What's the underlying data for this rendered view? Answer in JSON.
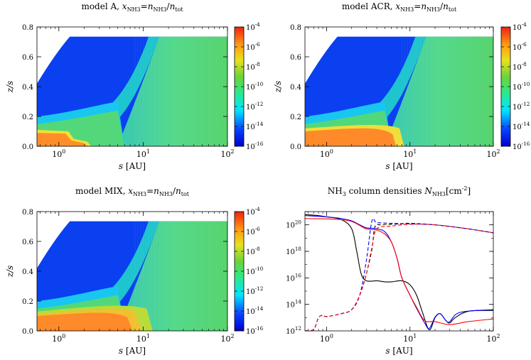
{
  "chart_data": [
    {
      "type": "heatmap",
      "title": "model A, x_NH3 = n_NH3/n_tot",
      "title_html": [
        "model A, ",
        "x",
        "NH3",
        "=",
        "n",
        "NH3",
        "/",
        "n",
        "tot"
      ],
      "xlabel": "s [AU]",
      "ylabel": "z/s",
      "xscale": "log",
      "xlim": [
        0.55,
        100
      ],
      "ylim": [
        0,
        0.8
      ],
      "x_ticks": [
        "10^0",
        "10^1",
        "10^2"
      ],
      "y_ticks": [
        "0.0",
        "0.2",
        "0.4",
        "0.6",
        "0.8"
      ],
      "colorbar": {
        "scale": "log",
        "range": [
          1e-16,
          0.0001
        ],
        "ticks": [
          "10^-4",
          "10^-6",
          "10^-8",
          "10^-10",
          "10^-12",
          "10^-14",
          "10^-16"
        ]
      },
      "notes_shown": "NH3 abundance rises from ~1e-16 (upper disk, blue) to ~1e-5 (midplane, red) near s<1.5 AU; ~1e-11 (green) in outer disk"
    },
    {
      "type": "heatmap",
      "title": "model ACR, x_NH3 = n_NH3/n_tot",
      "title_html": [
        "model ACR, ",
        "x",
        "NH3",
        "=",
        "n",
        "NH3",
        "/",
        "n",
        "tot"
      ],
      "xlabel": "s [AU]",
      "ylabel": "z/s",
      "xscale": "log",
      "xlim": [
        0.55,
        100
      ],
      "ylim": [
        0,
        0.8
      ],
      "x_ticks": [
        "10^0",
        "10^1",
        "10^2"
      ],
      "y_ticks": [
        "0.0",
        "0.2",
        "0.4",
        "0.6",
        "0.8"
      ],
      "colorbar": {
        "scale": "log",
        "range": [
          1e-16,
          0.0001
        ],
        "ticks": [
          "10^-4",
          "10^-6",
          "10^-8",
          "10^-10",
          "10^-12",
          "10^-14",
          "10^-16"
        ]
      }
    },
    {
      "type": "heatmap",
      "title": "model MIX, x_NH3 = n_NH3/n_tot",
      "title_html": [
        "model MIX, ",
        "x",
        "NH3",
        "=",
        "n",
        "NH3",
        "/",
        "n",
        "tot"
      ],
      "xlabel": "s [AU]",
      "ylabel": "z/s",
      "xscale": "log",
      "xlim": [
        0.55,
        100
      ],
      "ylim": [
        0,
        0.8
      ],
      "x_ticks": [
        "10^0",
        "10^1",
        "10^2"
      ],
      "y_ticks": [
        "0.0",
        "0.2",
        "0.4",
        "0.6",
        "0.8"
      ],
      "colorbar": {
        "scale": "log",
        "range": [
          1e-16,
          0.0001
        ],
        "ticks": [
          "10^-4",
          "10^-6",
          "10^-8",
          "10^-10",
          "10^-12",
          "10^-14",
          "10^-16"
        ]
      }
    },
    {
      "type": "line",
      "title": "NH3 column densities N_NH3 [cm^-2]",
      "xlabel": "s [AU]",
      "ylabel": "",
      "xscale": "log",
      "yscale": "log",
      "xlim": [
        0.55,
        100
      ],
      "ylim": [
        1000000000000.0,
        1e+21
      ],
      "x_ticks": [
        "10^0",
        "10^1",
        "10^2"
      ],
      "y_ticks": [
        "10^12",
        "10^14",
        "10^16",
        "10^18",
        "10^20"
      ],
      "series": [
        {
          "color": "#000000",
          "dash": "solid",
          "points": [
            [
              0.55,
              6e+20
            ],
            [
              0.8,
              5e+20
            ],
            [
              1.0,
              4e+20
            ],
            [
              1.5,
              2.5e+20
            ],
            [
              2.0,
              5e+19
            ],
            [
              2.3,
              1e+18
            ],
            [
              2.6,
              2e+16
            ],
            [
              3.0,
              6000000000000000.0
            ],
            [
              4.0,
              6000000000000000.0
            ],
            [
              5.0,
              5000000000000000.0
            ],
            [
              6.0,
              5000000000000000.0
            ],
            [
              8.0,
              6000000000000000.0
            ],
            [
              10,
              3000000000000000.0
            ],
            [
              12,
              500000000000000.0
            ],
            [
              14,
              30000000000000.0
            ],
            [
              17,
              1200000000000.0
            ],
            [
              20,
              10000000000000.0
            ],
            [
              23,
              20000000000000.0
            ],
            [
              27,
              6000000000000.0
            ],
            [
              30,
              4000000000000.0
            ],
            [
              35,
              10000000000000.0
            ],
            [
              50,
              30000000000000.0
            ],
            [
              100,
              35000000000000.0
            ]
          ]
        },
        {
          "color": "#000000",
          "dash": "dashed",
          "points": [
            [
              0.55,
              1000000000000.0
            ],
            [
              0.7,
              1300000000000.0
            ],
            [
              0.8,
              10000000000000.0
            ],
            [
              0.9,
              15000000000000.0
            ],
            [
              1.0,
              12000000000000.0
            ],
            [
              1.5,
              20000000000000.0
            ],
            [
              2.0,
              40000000000000.0
            ],
            [
              2.5,
              500000000000000.0
            ],
            [
              3.0,
              2e+16
            ],
            [
              3.5,
              1.5e+18
            ],
            [
              3.8,
              7e+19
            ],
            [
              4.5,
              1e+20
            ],
            [
              6.0,
              1.1e+20
            ],
            [
              8.0,
              1.2e+20
            ],
            [
              10,
              1.3e+20
            ],
            [
              20,
              1e+20
            ],
            [
              50,
              5e+19
            ],
            [
              100,
              2.5e+19
            ]
          ]
        },
        {
          "color": "#0000ff",
          "dash": "solid",
          "points": [
            [
              0.55,
              5e+20
            ],
            [
              1.0,
              4e+20
            ],
            [
              1.5,
              3e+20
            ],
            [
              2.0,
              2e+20
            ],
            [
              2.5,
              1e+20
            ],
            [
              3.0,
              6e+19
            ],
            [
              4.0,
              5e+19
            ],
            [
              5.0,
              3e+19
            ],
            [
              6.0,
              5e+18
            ],
            [
              7.0,
              3e+17
            ],
            [
              8.0,
              1e+16
            ],
            [
              10,
              500000000000000.0
            ],
            [
              12,
              50000000000000.0
            ],
            [
              15,
              4000000000000.0
            ],
            [
              17,
              1500000000000.0
            ],
            [
              20,
              11000000000000.0
            ],
            [
              23,
              20000000000000.0
            ],
            [
              27,
              6000000000000.0
            ],
            [
              30,
              5000000000000.0
            ],
            [
              40,
              25000000000000.0
            ],
            [
              100,
              40000000000000.0
            ]
          ]
        },
        {
          "color": "#0000ff",
          "dash": "dashed",
          "points": [
            [
              0.55,
              1000000000000.0
            ],
            [
              0.7,
              1300000000000.0
            ],
            [
              0.8,
              10000000000000.0
            ],
            [
              0.9,
              15000000000000.0
            ],
            [
              1.0,
              12000000000000.0
            ],
            [
              1.5,
              20000000000000.0
            ],
            [
              2.0,
              40000000000000.0
            ],
            [
              2.5,
              500000000000000.0
            ],
            [
              3.0,
              2e+17
            ],
            [
              3.5,
              2e+20
            ],
            [
              4.0,
              1.5e+20
            ],
            [
              6.0,
              1.3e+20
            ],
            [
              10,
              1.2e+20
            ],
            [
              20,
              1e+20
            ],
            [
              50,
              5e+19
            ],
            [
              100,
              2.5e+19
            ]
          ]
        },
        {
          "color": "#ff0000",
          "dash": "solid",
          "points": [
            [
              0.55,
              3e+20
            ],
            [
              1.0,
              2.8e+20
            ],
            [
              1.5,
              2.5e+20
            ],
            [
              2.0,
              1.8e+20
            ],
            [
              2.5,
              9e+19
            ],
            [
              3.0,
              5e+19
            ],
            [
              4.0,
              4e+19
            ],
            [
              5.0,
              2e+19
            ],
            [
              6.0,
              5e+18
            ],
            [
              7.0,
              3e+17
            ],
            [
              8.0,
              1e+16
            ],
            [
              10,
              500000000000000.0
            ],
            [
              12,
              60000000000000.0
            ],
            [
              15,
              6000000000000.0
            ],
            [
              20,
              5000000000000.0
            ],
            [
              30,
              3000000000000.0
            ],
            [
              50,
              5000000000000.0
            ],
            [
              100,
              8000000000000.0
            ]
          ]
        },
        {
          "color": "#ff0000",
          "dash": "dashed",
          "points": [
            [
              0.55,
              1000000000000.0
            ],
            [
              0.7,
              1300000000000.0
            ],
            [
              0.8,
              10000000000000.0
            ],
            [
              0.9,
              15000000000000.0
            ],
            [
              1.0,
              12000000000000.0
            ],
            [
              1.5,
              20000000000000.0
            ],
            [
              2.0,
              40000000000000.0
            ],
            [
              2.5,
              500000000000000.0
            ],
            [
              3.0,
              2e+16
            ],
            [
              3.5,
              2e+18
            ],
            [
              4.0,
              5e+19
            ],
            [
              6.0,
              8e+19
            ],
            [
              10,
              1.1e+20
            ],
            [
              20,
              1e+20
            ],
            [
              50,
              5e+19
            ],
            [
              100,
              2.5e+19
            ]
          ]
        }
      ]
    }
  ]
}
